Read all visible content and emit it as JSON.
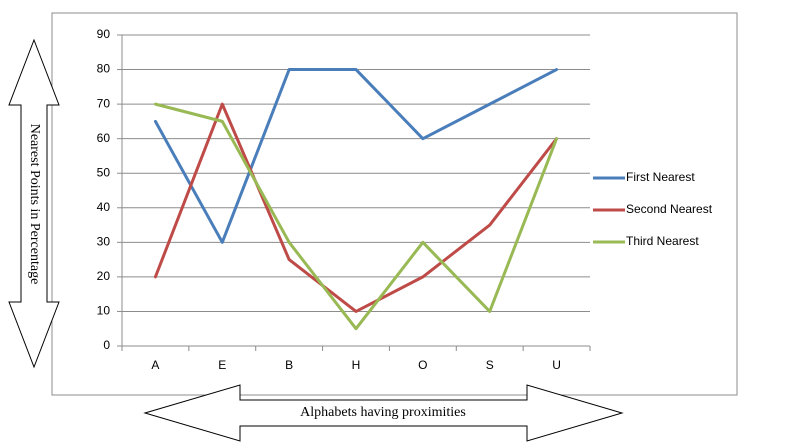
{
  "chart_data": {
    "type": "line",
    "categories": [
      "A",
      "E",
      "B",
      "H",
      "O",
      "S",
      "U"
    ],
    "series": [
      {
        "name": "First Nearest",
        "values": [
          65,
          30,
          80,
          80,
          60,
          70,
          80
        ],
        "color": "#4a7ebb"
      },
      {
        "name": "Second Nearest",
        "values": [
          20,
          70,
          25,
          10,
          20,
          35,
          60
        ],
        "color": "#be4b48"
      },
      {
        "name": "Third Nearest",
        "values": [
          70,
          65,
          30,
          5,
          30,
          10,
          60
        ],
        "color": "#98b954"
      }
    ],
    "yticks": [
      0,
      10,
      20,
      30,
      40,
      50,
      60,
      70,
      80,
      90
    ],
    "ylim": [
      0,
      90
    ],
    "grid": true,
    "legend": "right",
    "ylabel": "Nearest Points in Percentage",
    "xlabel": "Alphabets having proximities"
  }
}
